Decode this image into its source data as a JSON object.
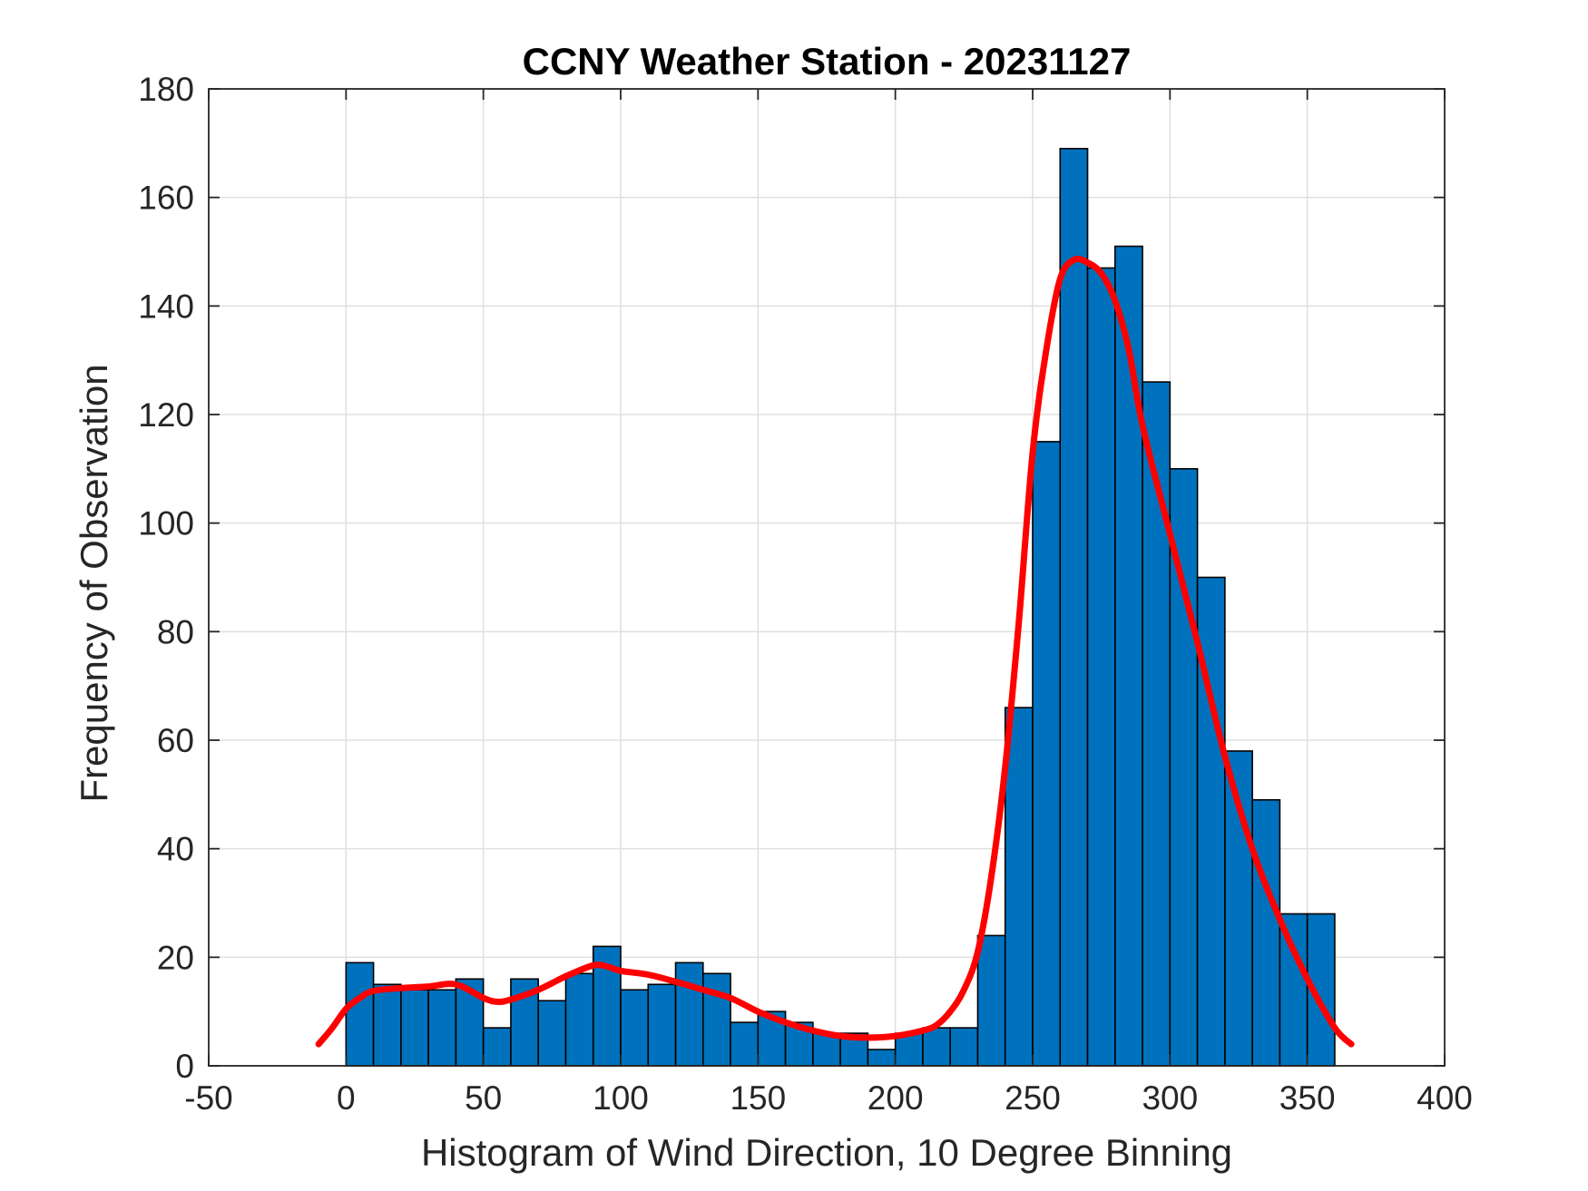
{
  "chart_data": {
    "type": "bar",
    "title": "CCNY Weather Station - 20231127",
    "xlabel": "Histogram of Wind Direction, 10 Degree Binning",
    "ylabel": "Frequency of Observation",
    "xlim": [
      -50,
      400
    ],
    "ylim": [
      0,
      180
    ],
    "xticks": [
      -50,
      0,
      50,
      100,
      150,
      200,
      250,
      300,
      350,
      400
    ],
    "yticks": [
      0,
      20,
      40,
      60,
      80,
      100,
      120,
      140,
      160,
      180
    ],
    "grid": true,
    "bin_width": 10,
    "bin_edges_start": [
      0,
      10,
      20,
      30,
      40,
      50,
      60,
      70,
      80,
      90,
      100,
      110,
      120,
      130,
      140,
      150,
      160,
      170,
      180,
      190,
      200,
      210,
      220,
      230,
      240,
      250,
      260,
      270,
      280,
      290,
      300,
      310,
      320,
      330,
      340,
      350
    ],
    "values": [
      19,
      15,
      14,
      14,
      16,
      7,
      16,
      12,
      17,
      22,
      14,
      15,
      19,
      17,
      8,
      10,
      8,
      6,
      6,
      3,
      6,
      7,
      7,
      24,
      66,
      115,
      169,
      147,
      151,
      126,
      110,
      90,
      58,
      49,
      28,
      28
    ],
    "bar_color": "#0072BD",
    "curve_color": "#FF0000",
    "curve": {
      "x": [
        -10,
        -5,
        0,
        5,
        10,
        20,
        30,
        40,
        50,
        55,
        60,
        70,
        80,
        90,
        95,
        100,
        110,
        120,
        130,
        140,
        150,
        160,
        170,
        180,
        190,
        200,
        210,
        215,
        220,
        225,
        230,
        235,
        240,
        245,
        250,
        255,
        260,
        265,
        270,
        275,
        280,
        285,
        290,
        300,
        310,
        320,
        330,
        340,
        350,
        360,
        366
      ],
      "y": [
        4,
        7,
        10.5,
        12.5,
        13.8,
        14.3,
        14.6,
        15,
        12.5,
        11.8,
        12.2,
        14,
        16.5,
        18.5,
        18.3,
        17.5,
        16.8,
        15.5,
        14,
        12.5,
        10,
        8,
        6.5,
        5.5,
        5.2,
        5.5,
        6.5,
        7.5,
        10,
        14,
        21,
        35,
        55,
        82,
        113,
        132,
        145,
        148.5,
        148,
        146,
        141,
        132,
        118,
        98,
        78,
        57,
        40,
        27,
        16,
        7,
        4
      ]
    }
  }
}
